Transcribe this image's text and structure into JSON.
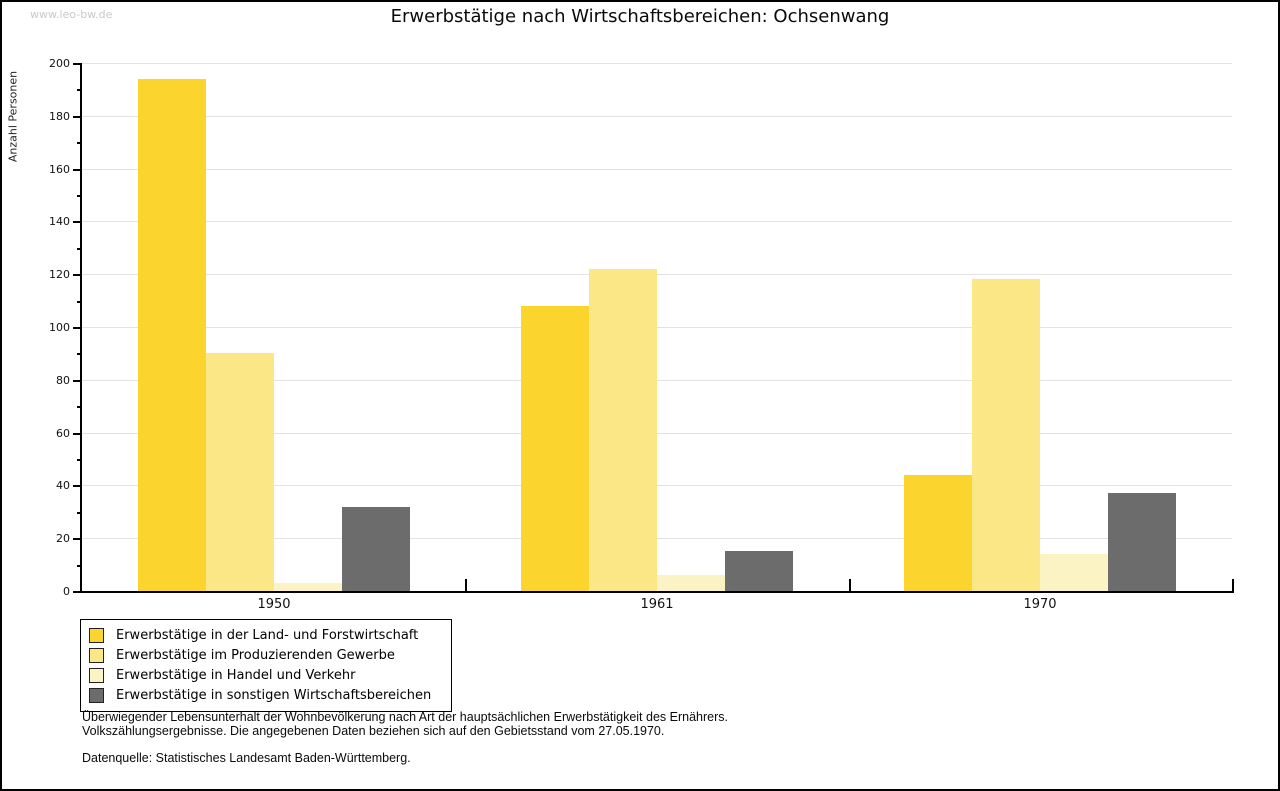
{
  "watermark": "www.leo-bw.de",
  "header": {
    "title": "Erwerbstätige nach Wirtschaftsbereichen: Ochsenwang"
  },
  "chart_data": {
    "type": "bar",
    "title": "Erwerbstätige nach Wirtschaftsbereichen: Ochsenwang",
    "xlabel": "",
    "ylabel": "Anzahl Personen",
    "categories": [
      "1950",
      "1961",
      "1970"
    ],
    "series": [
      {
        "name": "Erwerbstätige in der Land- und Forstwirtschaft",
        "color": "#FBD42D",
        "values": [
          194,
          108,
          44
        ]
      },
      {
        "name": "Erwerbstätige im Produzierenden Gewerbe",
        "color": "#FCE787",
        "values": [
          90,
          122,
          118
        ]
      },
      {
        "name": "Erwerbstätige in Handel und Verkehr",
        "color": "#FCF3C4",
        "values": [
          3,
          6,
          14
        ]
      },
      {
        "name": "Erwerbstätige in sonstigen Wirtschaftsbereichen",
        "color": "#6C6C6C",
        "values": [
          32,
          15,
          37
        ]
      }
    ],
    "ylim": [
      0,
      200
    ],
    "yticks": [
      0,
      20,
      40,
      60,
      80,
      100,
      120,
      140,
      160,
      180,
      200
    ],
    "grid": true,
    "legend_position": "bottom-left",
    "gridline_color": "#E3E3E3"
  },
  "footer": {
    "line1": "Überwiegender Lebensunterhalt der Wohnbevölkerung nach Art der hauptsächlichen Erwerbstätigkeit des Ernährers.",
    "line2": "Volkszählungsergebnisse. Die angegebenen Daten beziehen sich auf den Gebietsstand vom 27.05.1970.",
    "source": "Datenquelle: Statistisches Landesamt Baden-Württemberg."
  }
}
